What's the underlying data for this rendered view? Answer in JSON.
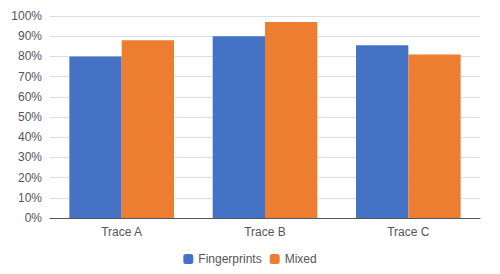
{
  "chart_data": {
    "type": "bar",
    "categories": [
      "Trace A",
      "Trace B",
      "Trace C"
    ],
    "series": [
      {
        "name": "Fingerprints",
        "color": "#4472C4",
        "values": [
          0.8,
          0.9,
          0.855
        ]
      },
      {
        "name": "Mixed",
        "color": "#ED7D31",
        "values": [
          0.88,
          0.97,
          0.81
        ]
      }
    ],
    "ylim": [
      0,
      1.0
    ],
    "yticks": [
      {
        "value": 0.0,
        "label": "0%"
      },
      {
        "value": 0.1,
        "label": "10%"
      },
      {
        "value": 0.2,
        "label": "20%"
      },
      {
        "value": 0.3,
        "label": "30%"
      },
      {
        "value": 0.4,
        "label": "40%"
      },
      {
        "value": 0.5,
        "label": "50%"
      },
      {
        "value": 0.6,
        "label": "60%"
      },
      {
        "value": 0.7,
        "label": "70%"
      },
      {
        "value": 0.8,
        "label": "80%"
      },
      {
        "value": 0.9,
        "label": "90%"
      },
      {
        "value": 1.0,
        "label": "100%"
      }
    ],
    "grid": true,
    "legend": "bottom"
  }
}
